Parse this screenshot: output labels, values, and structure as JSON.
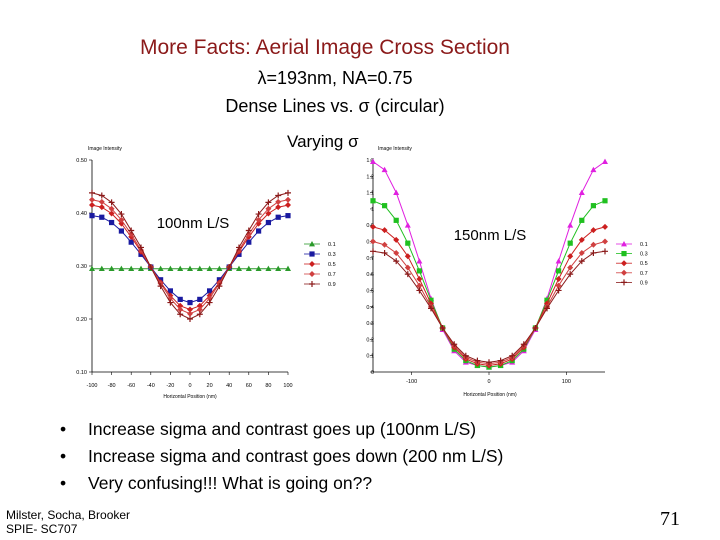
{
  "slide": {
    "title": "More Facts: Aerial Image Cross Section",
    "sub_line1": "=193nm, NA=0.75",
    "lambda_symbol": "λ",
    "sub_line2a": "Dense Lines vs. ",
    "sigma_symbol": "σ",
    "sub_line2b": " (circular)",
    "varying_label": "Varying ",
    "bullets": [
      "Increase sigma and contrast goes up (100nm L/S)",
      "Increase sigma and contrast goes down (200 nm L/S)",
      "Very confusing!!! What is going on??"
    ],
    "author_line1": "Milster, Socha, Brooker",
    "author_line2": "SPIE- SC707",
    "page_number": "71"
  },
  "chart_data": [
    {
      "type": "line",
      "title": "100nm L/S",
      "ylabel": "Image Intensity",
      "xlabel": "Horizontal Position (nm)",
      "xlim": [
        -100,
        100
      ],
      "ylim": [
        0.1,
        0.5
      ],
      "xticks": [
        "-100",
        "-80",
        "-60",
        "-40",
        "-20",
        "0",
        "20",
        "40",
        "60",
        "80",
        "100"
      ],
      "yticks": [
        "0.10",
        "0.20",
        "0.30",
        "0.40",
        "0.50"
      ],
      "legend_position": "right",
      "x": [
        -100,
        -90,
        -80,
        -70,
        -60,
        -50,
        -40,
        -30,
        -20,
        -10,
        0,
        10,
        20,
        30,
        40,
        50,
        60,
        70,
        80,
        90,
        100
      ],
      "series": [
        {
          "name": "0.1",
          "color": "#2a9a2a",
          "marker": "triangle",
          "values": [
            0.295,
            0.295,
            0.295,
            0.295,
            0.295,
            0.295,
            0.295,
            0.295,
            0.295,
            0.295,
            0.295,
            0.295,
            0.295,
            0.295,
            0.295,
            0.295,
            0.295,
            0.295,
            0.295,
            0.295,
            0.295
          ]
        },
        {
          "name": "0.3",
          "color": "#1a1aa0",
          "marker": "square",
          "values": [
            0.395,
            0.392,
            0.382,
            0.366,
            0.345,
            0.322,
            0.298,
            0.274,
            0.253,
            0.237,
            0.231,
            0.237,
            0.253,
            0.274,
            0.298,
            0.322,
            0.345,
            0.366,
            0.382,
            0.392,
            0.395
          ]
        },
        {
          "name": "0.5",
          "color": "#cc2020",
          "marker": "diamond",
          "values": [
            0.415,
            0.411,
            0.399,
            0.38,
            0.355,
            0.327,
            0.298,
            0.269,
            0.244,
            0.225,
            0.218,
            0.225,
            0.244,
            0.269,
            0.298,
            0.327,
            0.355,
            0.38,
            0.399,
            0.411,
            0.415
          ]
        },
        {
          "name": "0.7",
          "color": "#d04040",
          "marker": "diamond",
          "values": [
            0.425,
            0.421,
            0.408,
            0.387,
            0.36,
            0.33,
            0.298,
            0.267,
            0.239,
            0.218,
            0.21,
            0.218,
            0.239,
            0.267,
            0.298,
            0.33,
            0.36,
            0.387,
            0.408,
            0.421,
            0.425
          ]
        },
        {
          "name": "0.9",
          "color": "#8b1a1a",
          "marker": "plus",
          "values": [
            0.438,
            0.433,
            0.42,
            0.398,
            0.367,
            0.335,
            0.298,
            0.262,
            0.231,
            0.209,
            0.2,
            0.209,
            0.231,
            0.262,
            0.298,
            0.335,
            0.367,
            0.398,
            0.42,
            0.433,
            0.438
          ]
        }
      ]
    },
    {
      "type": "line",
      "title": "150nm L/S",
      "ylabel": "Image Intensity",
      "xlabel": "Horizontal Position (nm)",
      "xlim": [
        -150,
        150
      ],
      "ylim": [
        0,
        1.3
      ],
      "xticks": [
        "-100",
        "0",
        "100"
      ],
      "yticks": [
        "0",
        "0.1",
        "0.2",
        "0.3",
        "0.4",
        "0.5",
        "0.6",
        "0.7",
        "0.8",
        "0.9",
        "1",
        "1.1",
        "1.2",
        "1.3"
      ],
      "legend_position": "right",
      "x": [
        -150,
        -135,
        -120,
        -105,
        -90,
        -75,
        -60,
        -45,
        -30,
        -15,
        0,
        15,
        30,
        45,
        60,
        75,
        90,
        105,
        120,
        135,
        150
      ],
      "series": [
        {
          "name": "0.1",
          "color": "#e020e0",
          "marker": "triangle",
          "values": [
            1.29,
            1.24,
            1.1,
            0.9,
            0.68,
            0.45,
            0.26,
            0.13,
            0.06,
            0.04,
            0.03,
            0.04,
            0.06,
            0.13,
            0.26,
            0.45,
            0.68,
            0.9,
            1.1,
            1.24,
            1.29
          ]
        },
        {
          "name": "0.3",
          "color": "#20c020",
          "marker": "square",
          "values": [
            1.05,
            1.02,
            0.93,
            0.79,
            0.62,
            0.44,
            0.27,
            0.14,
            0.07,
            0.04,
            0.03,
            0.04,
            0.07,
            0.14,
            0.27,
            0.44,
            0.62,
            0.79,
            0.93,
            1.02,
            1.05
          ]
        },
        {
          "name": "0.5",
          "color": "#cc2020",
          "marker": "diamond",
          "values": [
            0.89,
            0.87,
            0.81,
            0.71,
            0.57,
            0.42,
            0.27,
            0.15,
            0.08,
            0.05,
            0.04,
            0.05,
            0.08,
            0.15,
            0.27,
            0.42,
            0.57,
            0.71,
            0.81,
            0.87,
            0.89
          ]
        },
        {
          "name": "0.7",
          "color": "#d04040",
          "marker": "diamond",
          "values": [
            0.8,
            0.78,
            0.73,
            0.64,
            0.53,
            0.4,
            0.27,
            0.16,
            0.09,
            0.06,
            0.05,
            0.06,
            0.09,
            0.16,
            0.27,
            0.4,
            0.53,
            0.64,
            0.73,
            0.78,
            0.8
          ]
        },
        {
          "name": "0.9",
          "color": "#8b1a1a",
          "marker": "plus",
          "values": [
            0.74,
            0.73,
            0.68,
            0.6,
            0.5,
            0.39,
            0.27,
            0.17,
            0.1,
            0.07,
            0.06,
            0.07,
            0.1,
            0.17,
            0.27,
            0.39,
            0.5,
            0.6,
            0.68,
            0.73,
            0.74
          ]
        }
      ]
    }
  ]
}
